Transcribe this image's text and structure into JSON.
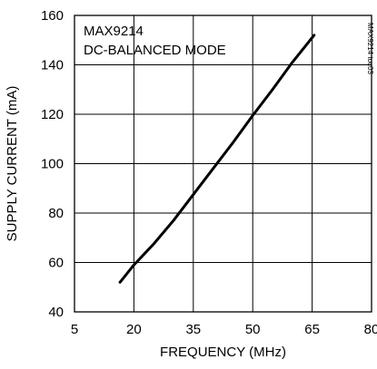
{
  "chart_data": {
    "type": "line",
    "annotations": [
      "MAX9214",
      "DC-BALANCED MODE"
    ],
    "side_label": "MAX9214 toc03",
    "xlabel": "FREQUENCY (MHz)",
    "ylabel": "SUPPLY CURRENT (mA)",
    "xlim": [
      5,
      80
    ],
    "ylim": [
      40,
      160
    ],
    "x_ticks": [
      5,
      20,
      35,
      50,
      65,
      80
    ],
    "y_ticks": [
      40,
      60,
      80,
      100,
      120,
      140,
      160
    ],
    "grid": true,
    "series": [
      {
        "x": [
          16.5,
          20,
          25,
          30,
          35,
          40,
          45,
          50,
          55,
          60,
          65.5
        ],
        "values": [
          52,
          59,
          67.5,
          77,
          87.5,
          98,
          108.5,
          119.5,
          130,
          141,
          152
        ]
      }
    ]
  }
}
